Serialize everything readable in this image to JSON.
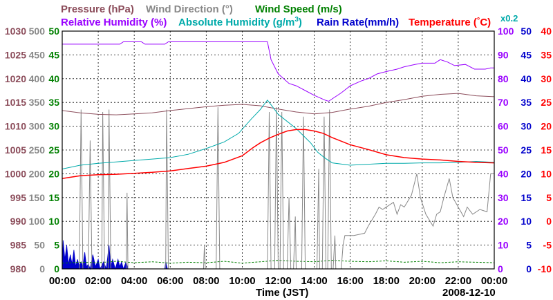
{
  "chart_data": {
    "type": "line",
    "date": "2008-12-10",
    "xlabel": "Time (JST)",
    "x_ticks": [
      "00:00",
      "02:00",
      "04:00",
      "06:00",
      "08:00",
      "10:00",
      "12:00",
      "14:00",
      "16:00",
      "18:00",
      "20:00",
      "22:00",
      "00:00"
    ],
    "x_range_hours": [
      0,
      24
    ],
    "legend": {
      "row1": [
        {
          "text": "Pressure (hPa)",
          "color": "#8B4C5A"
        },
        {
          "text": "Wind Direction (°)",
          "color": "#888888"
        },
        {
          "text": "Wind Speed (m/s)",
          "color": "#008000"
        }
      ],
      "row2": [
        {
          "text": "Relative Humidity (%)",
          "color": "#9900FF"
        },
        {
          "text": "Absolute Humidity (g/m",
          "sup": "3",
          "close": ")",
          "color": "#00AAAA"
        },
        {
          "text": "Rain Rate(mm/h)",
          "color": "#0000CC"
        },
        {
          "text": "Temperature (",
          "deg": "°",
          "unit_tail": "C)",
          "color": "#FF0000"
        }
      ],
      "scale_note": {
        "text": "x0.2",
        "color": "#00AAAA"
      }
    },
    "axes": {
      "pressure": {
        "range": [
          980,
          1030
        ],
        "ticks": [
          "1030",
          "1025",
          "1020",
          "1015",
          "1010",
          "1005",
          "1000",
          "995",
          "990",
          "985",
          "980"
        ],
        "color": "#8B4C5A"
      },
      "wind_direction": {
        "range": [
          0,
          500
        ],
        "ticks": [
          "500",
          "450",
          "400",
          "350",
          "300",
          "250",
          "200",
          "150",
          "100",
          "50",
          "0"
        ],
        "color": "#888888"
      },
      "wind_speed": {
        "range": [
          0,
          50
        ],
        "ticks": [
          "50",
          "45",
          "40",
          "35",
          "30",
          "25",
          "20",
          "15",
          "10",
          "5",
          "0"
        ],
        "color": "#008000"
      },
      "relative_humidity": {
        "range": [
          0,
          100
        ],
        "ticks": [
          "100",
          "90",
          "80",
          "70",
          "60",
          "50",
          "40",
          "30",
          "20",
          "10",
          "0"
        ],
        "color": "#9900FF"
      },
      "rain_rate": {
        "range": [
          0,
          50
        ],
        "ticks": [
          "50",
          "45",
          "40",
          "35",
          "30",
          "25",
          "20",
          "15",
          "10",
          "5",
          "0"
        ],
        "color": "#0000CC"
      },
      "temperature": {
        "range": [
          -10,
          40
        ],
        "ticks": [
          "40",
          "35",
          "30",
          "25",
          "20",
          "15",
          "10",
          "5",
          "0",
          "-5",
          "-10"
        ],
        "color": "#FF0000"
      }
    },
    "series": [
      {
        "name": "Relative Humidity",
        "axis": "relative_humidity",
        "color": "#9900FF",
        "points": [
          [
            0,
            94.5
          ],
          [
            3.2,
            94.5
          ],
          [
            3.4,
            95.5
          ],
          [
            4.4,
            95.5
          ],
          [
            4.6,
            94.5
          ],
          [
            5.7,
            94.5
          ],
          [
            5.9,
            95.5
          ],
          [
            11.4,
            95.5
          ],
          [
            11.6,
            88
          ],
          [
            12,
            82
          ],
          [
            12.6,
            78
          ],
          [
            13,
            77
          ],
          [
            13.5,
            75
          ],
          [
            14,
            73
          ],
          [
            14.6,
            71
          ],
          [
            14.8,
            70.5
          ],
          [
            15,
            71.5
          ],
          [
            15.5,
            74
          ],
          [
            16,
            77
          ],
          [
            16.6,
            79
          ],
          [
            17,
            80
          ],
          [
            17.5,
            82
          ],
          [
            18,
            83
          ],
          [
            18.6,
            84
          ],
          [
            19,
            85
          ],
          [
            19.6,
            86
          ],
          [
            20,
            86.5
          ],
          [
            20.7,
            86.5
          ],
          [
            21,
            88
          ],
          [
            21.4,
            87
          ],
          [
            21.8,
            85.5
          ],
          [
            22.4,
            86
          ],
          [
            22.9,
            84
          ],
          [
            23.5,
            84
          ],
          [
            23.8,
            84.5
          ],
          [
            24,
            84.5
          ]
        ]
      },
      {
        "name": "Pressure",
        "axis": "pressure",
        "color": "#8B4C5A",
        "points": [
          [
            0,
            1013.3
          ],
          [
            1,
            1012.8
          ],
          [
            2,
            1012.5
          ],
          [
            3,
            1012.4
          ],
          [
            4,
            1012.6
          ],
          [
            5,
            1012.8
          ],
          [
            6,
            1013.3
          ],
          [
            7,
            1013.7
          ],
          [
            8,
            1014.1
          ],
          [
            9,
            1014.4
          ],
          [
            10,
            1014.6
          ],
          [
            11,
            1014.3
          ],
          [
            12,
            1013.6
          ],
          [
            13,
            1013
          ],
          [
            14,
            1012.6
          ],
          [
            15,
            1012.9
          ],
          [
            16,
            1013.6
          ],
          [
            17,
            1014.2
          ],
          [
            18,
            1015
          ],
          [
            19,
            1015.6
          ],
          [
            20,
            1016.3
          ],
          [
            21,
            1016.7
          ],
          [
            22,
            1016.9
          ],
          [
            23,
            1016.4
          ],
          [
            24,
            1016.2
          ]
        ]
      },
      {
        "name": "Absolute Humidity x0.2",
        "axis": "rain_rate",
        "color": "#00AAAA",
        "points": [
          [
            0,
            21
          ],
          [
            1,
            21.8
          ],
          [
            2,
            22.2
          ],
          [
            3,
            22.5
          ],
          [
            4,
            22.8
          ],
          [
            5,
            23.1
          ],
          [
            6,
            23.4
          ],
          [
            7,
            24.1
          ],
          [
            8,
            25.3
          ],
          [
            9,
            26.7
          ],
          [
            9.8,
            28.5
          ],
          [
            10.5,
            31.5
          ],
          [
            11,
            33.5
          ],
          [
            11.4,
            35.5
          ],
          [
            11.6,
            34.5
          ],
          [
            12,
            32.5
          ],
          [
            12.5,
            31
          ],
          [
            13,
            29.5
          ],
          [
            13.4,
            28
          ],
          [
            13.8,
            26.5
          ],
          [
            14.2,
            24.5
          ],
          [
            14.6,
            23.3
          ],
          [
            15,
            22.3
          ],
          [
            16,
            21.8
          ],
          [
            17,
            22
          ],
          [
            18,
            22.2
          ],
          [
            19,
            22.2
          ],
          [
            20,
            22.3
          ],
          [
            21,
            22.3
          ],
          [
            22,
            22.4
          ],
          [
            23,
            22.6
          ],
          [
            24,
            22.4
          ]
        ]
      },
      {
        "name": "Temperature",
        "axis": "temperature",
        "color": "#FF0000",
        "points": [
          [
            0,
            9
          ],
          [
            1,
            9.6
          ],
          [
            2,
            9.8
          ],
          [
            3,
            9.9
          ],
          [
            4,
            10.1
          ],
          [
            5,
            10.3
          ],
          [
            6,
            10.6
          ],
          [
            7,
            11.1
          ],
          [
            8,
            11.6
          ],
          [
            9,
            12.4
          ],
          [
            10,
            13.8
          ],
          [
            10.6,
            15.5
          ],
          [
            11,
            16.5
          ],
          [
            11.5,
            17.5
          ],
          [
            12,
            18.3
          ],
          [
            12.5,
            19
          ],
          [
            13,
            19.3
          ],
          [
            13.5,
            19.3
          ],
          [
            14,
            19
          ],
          [
            14.5,
            18.5
          ],
          [
            15,
            17.6
          ],
          [
            16,
            16.1
          ],
          [
            17,
            15.1
          ],
          [
            18,
            14
          ],
          [
            19,
            13.4
          ],
          [
            20,
            13.1
          ],
          [
            21,
            12.9
          ],
          [
            22,
            12.6
          ],
          [
            23,
            12.4
          ],
          [
            24,
            12.3
          ]
        ]
      },
      {
        "name": "Wind Direction",
        "axis": "wind_direction",
        "color": "#888888",
        "points": [
          [
            0,
            0
          ],
          [
            0.95,
            0
          ],
          [
            1.05,
            335
          ],
          [
            1.15,
            0
          ],
          [
            1.45,
            0
          ],
          [
            1.55,
            270
          ],
          [
            1.65,
            0
          ],
          [
            2.2,
            0
          ],
          [
            2.25,
            330
          ],
          [
            2.35,
            0
          ],
          [
            2.55,
            0
          ],
          [
            2.6,
            335
          ],
          [
            2.7,
            0
          ],
          [
            3.55,
            0
          ],
          [
            3.6,
            160
          ],
          [
            3.65,
            0
          ],
          [
            5.75,
            0
          ],
          [
            5.8,
            335
          ],
          [
            5.9,
            0
          ],
          [
            7.85,
            0
          ],
          [
            7.9,
            50
          ],
          [
            7.95,
            0
          ],
          [
            8.55,
            0
          ],
          [
            8.65,
            340
          ],
          [
            8.75,
            0
          ],
          [
            11.4,
            0
          ],
          [
            11.5,
            330
          ],
          [
            11.6,
            0
          ],
          [
            11.8,
            0
          ],
          [
            11.9,
            340
          ],
          [
            12.0,
            0
          ],
          [
            12.1,
            0
          ],
          [
            12.2,
            330
          ],
          [
            12.3,
            0
          ],
          [
            12.5,
            0
          ],
          [
            12.6,
            150
          ],
          [
            12.7,
            0
          ],
          [
            12.85,
            0
          ],
          [
            12.95,
            110
          ],
          [
            13.0,
            0
          ],
          [
            13.3,
            0
          ],
          [
            13.4,
            320
          ],
          [
            13.5,
            0
          ],
          [
            14.15,
            0
          ],
          [
            14.25,
            210
          ],
          [
            14.3,
            0
          ],
          [
            14.45,
            0
          ],
          [
            14.55,
            320
          ],
          [
            14.65,
            0
          ],
          [
            14.75,
            0
          ],
          [
            14.85,
            335
          ],
          [
            14.95,
            0
          ],
          [
            15.05,
            0
          ],
          [
            15.15,
            70
          ],
          [
            15.2,
            0
          ],
          [
            15.5,
            0
          ],
          [
            15.6,
            50
          ],
          [
            15.7,
            70
          ],
          [
            16.2,
            70
          ],
          [
            16.8,
            75
          ],
          [
            17.0,
            90
          ],
          [
            17.4,
            115
          ],
          [
            17.6,
            130
          ],
          [
            17.8,
            125
          ],
          [
            18.0,
            130
          ],
          [
            18.4,
            140
          ],
          [
            18.6,
            115
          ],
          [
            18.8,
            135
          ],
          [
            19.0,
            130
          ],
          [
            19.4,
            155
          ],
          [
            19.7,
            200
          ],
          [
            19.9,
            150
          ],
          [
            20.2,
            115
          ],
          [
            20.6,
            90
          ],
          [
            20.8,
            115
          ],
          [
            21.0,
            120
          ],
          [
            21.2,
            150
          ],
          [
            21.5,
            190
          ],
          [
            21.7,
            150
          ],
          [
            22.0,
            130
          ],
          [
            22.3,
            110
          ],
          [
            22.5,
            130
          ],
          [
            22.8,
            115
          ],
          [
            23.2,
            125
          ],
          [
            23.6,
            120
          ],
          [
            23.8,
            200
          ],
          [
            24,
            200
          ]
        ]
      },
      {
        "name": "Wind Speed",
        "axis": "wind_speed",
        "color": "#008000",
        "points": [
          [
            0,
            1.2
          ],
          [
            1,
            1.4
          ],
          [
            2,
            1.3
          ],
          [
            3,
            1.6
          ],
          [
            4,
            1.3
          ],
          [
            5,
            1.5
          ],
          [
            6,
            1.2
          ],
          [
            7,
            1.4
          ],
          [
            8,
            1.3
          ],
          [
            9,
            1.6
          ],
          [
            10,
            1.2
          ],
          [
            11,
            1.5
          ],
          [
            12,
            1.8
          ],
          [
            13,
            1.6
          ],
          [
            14,
            1.5
          ],
          [
            15,
            1.8
          ],
          [
            16,
            1.6
          ],
          [
            17,
            1.5
          ],
          [
            18,
            1.7
          ],
          [
            19,
            1.4
          ],
          [
            20,
            1.6
          ],
          [
            21,
            1.3
          ],
          [
            22,
            1.5
          ],
          [
            23,
            1.4
          ],
          [
            24,
            1.3
          ]
        ]
      },
      {
        "name": "Rain Rate",
        "axis": "rain_rate",
        "color": "#0000CC",
        "style": "filled",
        "points": [
          [
            0,
            0
          ],
          [
            0.05,
            6
          ],
          [
            0.15,
            2
          ],
          [
            0.25,
            5
          ],
          [
            0.35,
            1
          ],
          [
            0.45,
            3
          ],
          [
            0.55,
            1
          ],
          [
            0.65,
            4
          ],
          [
            0.75,
            0.5
          ],
          [
            0.85,
            2
          ],
          [
            0.95,
            0.5
          ],
          [
            1.05,
            1.5
          ],
          [
            1.15,
            0.5
          ],
          [
            1.25,
            3.5
          ],
          [
            1.35,
            0.5
          ],
          [
            1.45,
            1
          ],
          [
            1.55,
            0
          ],
          [
            1.7,
            3
          ],
          [
            1.85,
            0.5
          ],
          [
            2.0,
            2
          ],
          [
            2.1,
            0
          ],
          [
            2.3,
            1.5
          ],
          [
            2.45,
            0
          ],
          [
            2.6,
            5
          ],
          [
            2.7,
            0.5
          ],
          [
            2.8,
            2
          ],
          [
            2.95,
            0
          ],
          [
            3.1,
            2
          ],
          [
            3.2,
            0.5
          ],
          [
            3.3,
            1.5
          ],
          [
            3.4,
            0
          ],
          [
            3.55,
            1.5
          ],
          [
            3.65,
            0
          ],
          [
            5.7,
            0
          ],
          [
            5.75,
            1.5
          ],
          [
            5.85,
            0
          ],
          [
            24,
            0
          ]
        ]
      }
    ]
  }
}
